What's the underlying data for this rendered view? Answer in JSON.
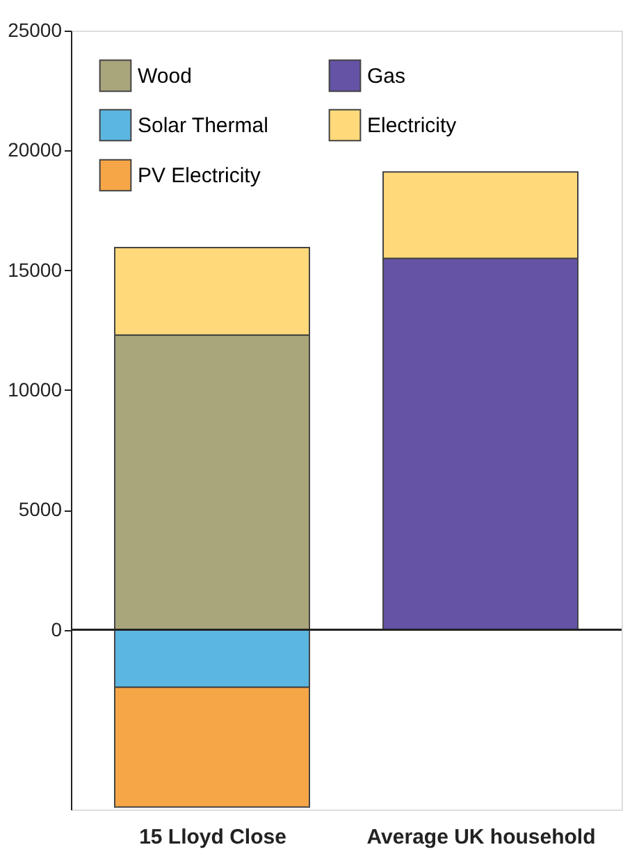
{
  "chart_data": {
    "type": "bar",
    "stacked": true,
    "categories": [
      "15 Lloyd Close",
      "Average UK household"
    ],
    "series": [
      {
        "name": "Wood",
        "color": "#a9a67c",
        "values": [
          12300,
          null
        ]
      },
      {
        "name": "Solar Thermal",
        "color": "#5cb6e2",
        "values": [
          -2400,
          null
        ]
      },
      {
        "name": "PV Electricity",
        "color": "#f7a647",
        "values": [
          -5000,
          null
        ]
      },
      {
        "name": "Gas",
        "color": "#6553a6",
        "values": [
          null,
          15500
        ]
      },
      {
        "name": "Electricity",
        "color": "#ffd97a",
        "values": [
          3650,
          3600
        ]
      }
    ],
    "ylim": [
      -7500,
      25000
    ],
    "yticks": [
      0,
      {
        "value": 5000,
        "label": "5000"
      },
      {
        "value": 10000,
        "label": "10000"
      },
      {
        "value": 15000,
        "label": "15000"
      },
      {
        "value": 20000,
        "label": "20000"
      },
      {
        "value": 25000,
        "label": "25000"
      }
    ],
    "grid": false,
    "legend": "top left",
    "ref_lines": [
      {
        "axis": "y",
        "value": 0
      }
    ]
  }
}
